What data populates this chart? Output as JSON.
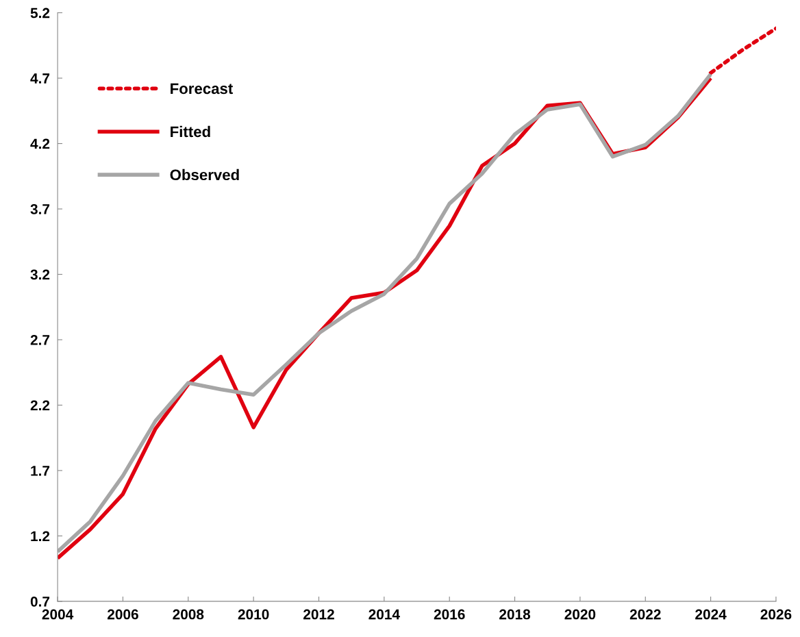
{
  "chart_data": {
    "type": "line",
    "x": [
      2004,
      2005,
      2006,
      2007,
      2008,
      2009,
      2010,
      2011,
      2012,
      2013,
      2014,
      2015,
      2016,
      2017,
      2018,
      2019,
      2020,
      2021,
      2022,
      2023,
      2024
    ],
    "series": [
      {
        "name": "Forecast",
        "color": "#e00010",
        "line_style": "dotted",
        "x": [
          2024,
          2025,
          2026
        ],
        "values": [
          4.74,
          4.92,
          5.08
        ]
      },
      {
        "name": "Fitted",
        "color": "#e00010",
        "line_style": "solid",
        "values": [
          1.03,
          1.25,
          1.52,
          2.02,
          2.36,
          2.57,
          2.03,
          2.47,
          2.75,
          3.02,
          3.06,
          3.23,
          3.57,
          4.03,
          4.2,
          4.49,
          4.51,
          4.12,
          4.17,
          4.4,
          4.7
        ]
      },
      {
        "name": "Observed",
        "color": "#a6a6a6",
        "line_style": "solid",
        "values": [
          1.08,
          1.31,
          1.66,
          2.08,
          2.37,
          2.32,
          2.28,
          2.51,
          2.75,
          2.92,
          3.05,
          3.32,
          3.74,
          3.97,
          4.27,
          4.46,
          4.5,
          4.1,
          4.19,
          4.41,
          4.73
        ]
      }
    ],
    "xlim": [
      2004,
      2026
    ],
    "xticks": [
      2004,
      2006,
      2008,
      2010,
      2012,
      2014,
      2016,
      2018,
      2020,
      2022,
      2024,
      2026
    ],
    "ylim": [
      0.7,
      5.2
    ],
    "yticks": [
      0.7,
      1.2,
      1.7,
      2.2,
      2.7,
      3.2,
      3.7,
      4.2,
      4.7,
      5.2
    ],
    "grid": false,
    "legend": "top left",
    "marker": "none"
  }
}
